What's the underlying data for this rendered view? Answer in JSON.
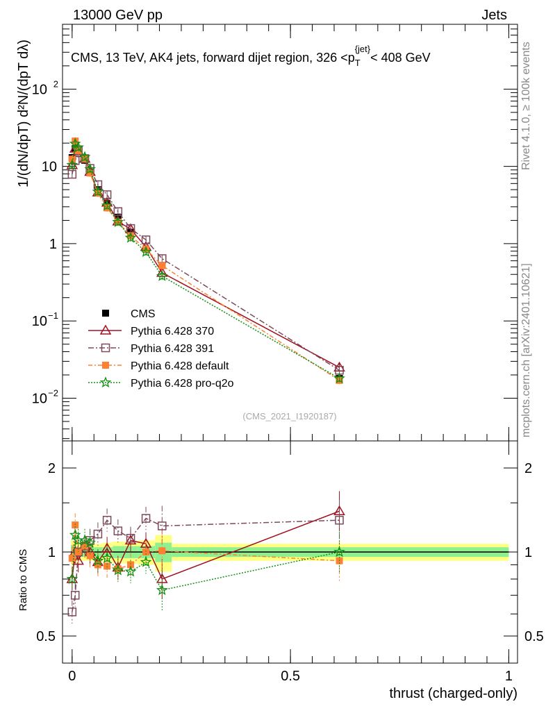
{
  "header": {
    "left": "13000 GeV pp",
    "right": "Jets"
  },
  "side_labels": {
    "rivet": "Rivet 4.1.0, ≥ 100k events",
    "mcplots": "mcplots.cern.ch [arXiv:2401.10621]"
  },
  "chart_data": [
    {
      "type": "line",
      "title": "CMS, 13 TeV, AK4 jets, forward dijet region, 326 <p_T^{jet}< 408 GeV",
      "title_text": "CMS, 13 TeV, AK4 jets, forward dijet region, 326 <p",
      "title_sub": "T",
      "title_sup": "{jet}",
      "title_end": "< 408 GeV",
      "ylabel": "1/(dN/dpT) d²N/(dpT dλ)",
      "ylim": [
        0.0028,
        690
      ],
      "yscale": "log",
      "yticks": [
        {
          "v": 0.01,
          "label": "10",
          "exp": "−2"
        },
        {
          "v": 0.1,
          "label": "10",
          "exp": "−1"
        },
        {
          "v": 1,
          "label": "1",
          "exp": ""
        },
        {
          "v": 10,
          "label": "10",
          "exp": ""
        },
        {
          "v": 100,
          "label": "10",
          "exp": "2"
        }
      ],
      "analysis_label": "(CMS_2021_I1920187)",
      "legend_position": "middle-left",
      "x": [
        0.0,
        0.007,
        0.014,
        0.029,
        0.041,
        0.059,
        0.08,
        0.105,
        0.134,
        0.169,
        0.206,
        0.612
      ],
      "series": [
        {
          "name": "CMS",
          "color": "#000000",
          "marker": "square-filled",
          "values": [
            13,
            17,
            16,
            12,
            8.5,
            5,
            3.3,
            2.2,
            1.4,
            0.85,
            0.52,
            0.018
          ]
        },
        {
          "name": "Pythia 6.428 370",
          "color": "#a01020",
          "marker": "triangle-open",
          "dash": "",
          "values": [
            10.4,
            17,
            14.9,
            12.6,
            8.5,
            4.6,
            3.4,
            1.94,
            1.54,
            0.91,
            0.42,
            0.025
          ]
        },
        {
          "name": "Pythia 6.428 391",
          "color": "#7a4a5a",
          "marker": "square-open",
          "dash": "8,3,2,3",
          "values": [
            7.9,
            11.9,
            16,
            12.6,
            9.4,
            5.8,
            4.3,
            2.6,
            1.57,
            1.12,
            0.64,
            0.023
          ]
        },
        {
          "name": "Pythia 6.428 default",
          "color": "#ff8030",
          "marker": "square-filled",
          "dash": "6,3,2,3",
          "values": [
            12.4,
            21.3,
            16,
            12.6,
            8.2,
            4.5,
            2.9,
            1.9,
            1.26,
            0.85,
            0.52,
            0.017
          ]
        },
        {
          "name": "Pythia 6.428 pro-q2o",
          "color": "#109010",
          "marker": "star",
          "dash": "2,2",
          "values": [
            10.4,
            19.6,
            17.6,
            13.2,
            9.2,
            4.7,
            3.1,
            1.9,
            1.19,
            0.78,
            0.38,
            0.018
          ]
        }
      ]
    },
    {
      "type": "line",
      "xlabel": "thrust (charged-only)",
      "ylabel": "Ratio to CMS",
      "yscale": "log",
      "ylim": [
        0.4,
        2.5
      ],
      "xlim": [
        -0.022,
        1.02
      ],
      "xticks": [
        {
          "v": 0,
          "label": "0"
        },
        {
          "v": 0.5,
          "label": "0.5"
        },
        {
          "v": 1,
          "label": "1"
        }
      ],
      "yticks": [
        {
          "v": 0.5,
          "label": "0.5"
        },
        {
          "v": 1,
          "label": "1"
        },
        {
          "v": 2,
          "label": "2"
        }
      ],
      "band_edges": [
        -0.003,
        0.004,
        0.011,
        0.022,
        0.035,
        0.05,
        0.07,
        0.093,
        0.12,
        0.15,
        0.19,
        0.228,
        1.0
      ],
      "band_green": [
        0.06,
        0.05,
        0.04,
        0.04,
        0.04,
        0.04,
        0.04,
        0.05,
        0.05,
        0.05,
        0.08,
        0.04
      ],
      "band_yellow": [
        0.1,
        0.09,
        0.07,
        0.07,
        0.07,
        0.07,
        0.08,
        0.09,
        0.09,
        0.1,
        0.15,
        0.07
      ],
      "series": [
        {
          "name": "Pythia 6.428 370",
          "values": [
            0.8,
            1.0,
            0.93,
            1.05,
            1.0,
            0.92,
            1.03,
            0.88,
            1.1,
            1.07,
            0.8,
            1.4
          ]
        },
        {
          "name": "Pythia 6.428 391",
          "values": [
            0.61,
            0.7,
            1.0,
            1.05,
            1.1,
            1.16,
            1.3,
            1.19,
            1.12,
            1.32,
            1.24,
            1.3
          ]
        },
        {
          "name": "Pythia 6.428 default",
          "values": [
            0.95,
            1.25,
            1.0,
            1.05,
            0.97,
            0.9,
            0.89,
            0.87,
            0.9,
            1.0,
            1.01,
            0.93
          ]
        },
        {
          "name": "Pythia 6.428 pro-q2o",
          "values": [
            0.8,
            1.15,
            1.1,
            1.1,
            1.08,
            0.93,
            0.95,
            0.86,
            0.85,
            0.92,
            0.73,
            1.0
          ]
        }
      ]
    }
  ]
}
